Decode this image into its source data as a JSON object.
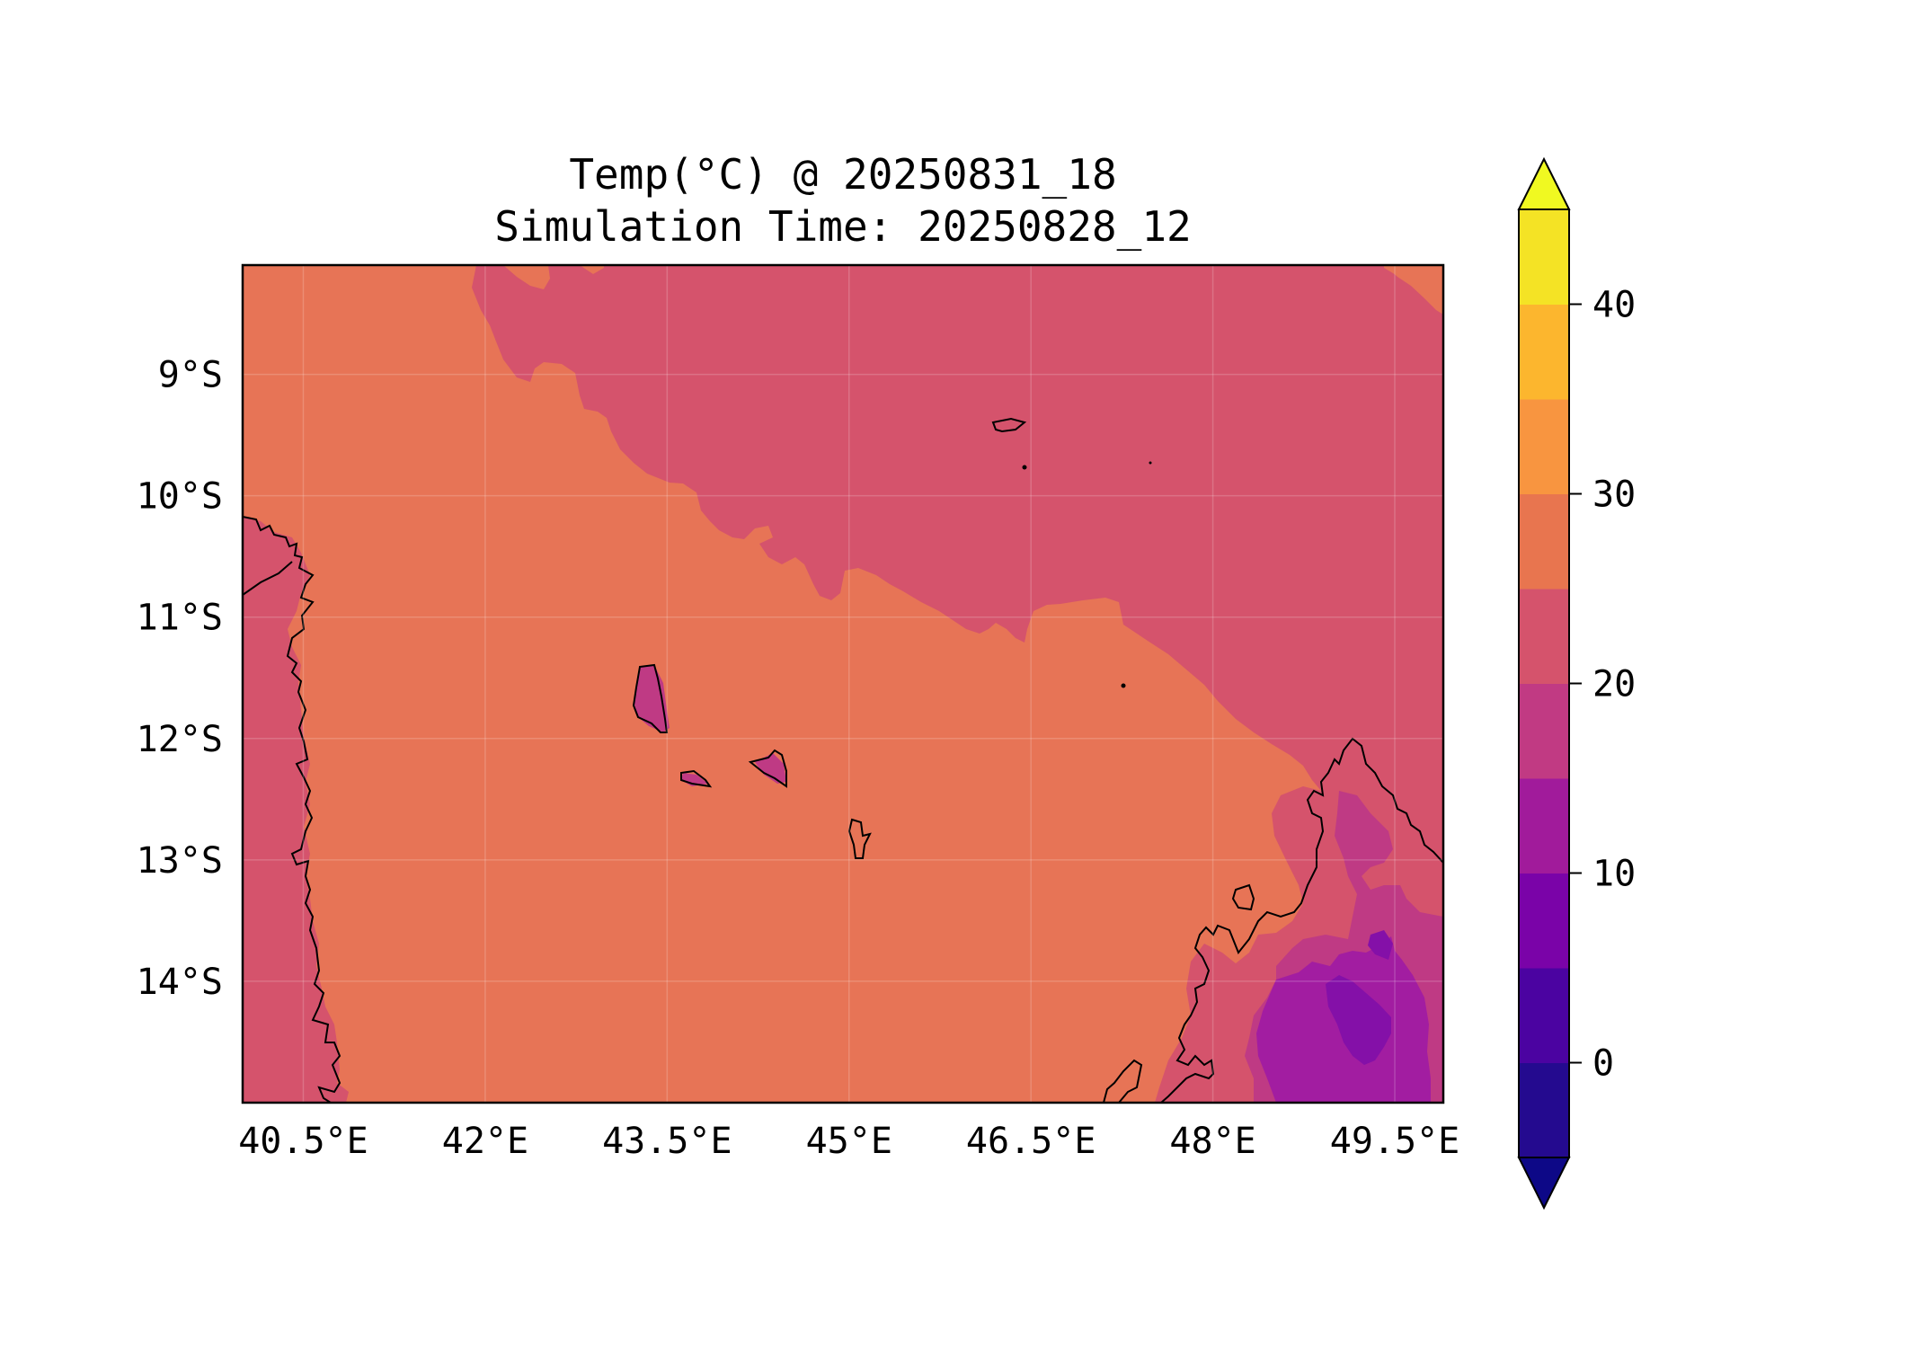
{
  "title": {
    "line1": "Temp(°C) @ 20250831_18",
    "line2": "Simulation Time: 20250828_12"
  },
  "map": {
    "lon_ticks": [
      "40.5°E",
      "42°E",
      "43.5°E",
      "45°E",
      "46.5°E",
      "48°E",
      "49.5°E"
    ],
    "lat_ticks": [
      "9°S",
      "10°S",
      "11°S",
      "12°S",
      "13°S",
      "14°S"
    ],
    "lon_range": [
      40.0,
      49.9
    ],
    "lat_range": [
      -15.0,
      -8.1
    ],
    "fill_colors": {
      "band_20_25": "#d5536c",
      "band_25_30": "#e77456",
      "band_15_20": "#bf3a84",
      "band_10_15": "#a21da1",
      "band_5_10": "#8410a8"
    },
    "coastline_color": "#000000",
    "gridlines": true
  },
  "colorbar": {
    "ticks": [
      "0",
      "10",
      "20",
      "30",
      "40"
    ],
    "tick_values": [
      0,
      10,
      20,
      30,
      40
    ],
    "min": -5,
    "max": 45,
    "extend": "both",
    "colormap": "plasma",
    "levels": [
      -5,
      0,
      5,
      10,
      15,
      20,
      25,
      30,
      35,
      40,
      45
    ],
    "colors": [
      "#240a8f",
      "#4b03a1",
      "#7a03a8",
      "#a11b9b",
      "#c13a83",
      "#d5536c",
      "#e8754f",
      "#f89540",
      "#fcb62e",
      "#f4e325"
    ],
    "under_color": "#0d0887",
    "over_color": "#f0f921"
  }
}
